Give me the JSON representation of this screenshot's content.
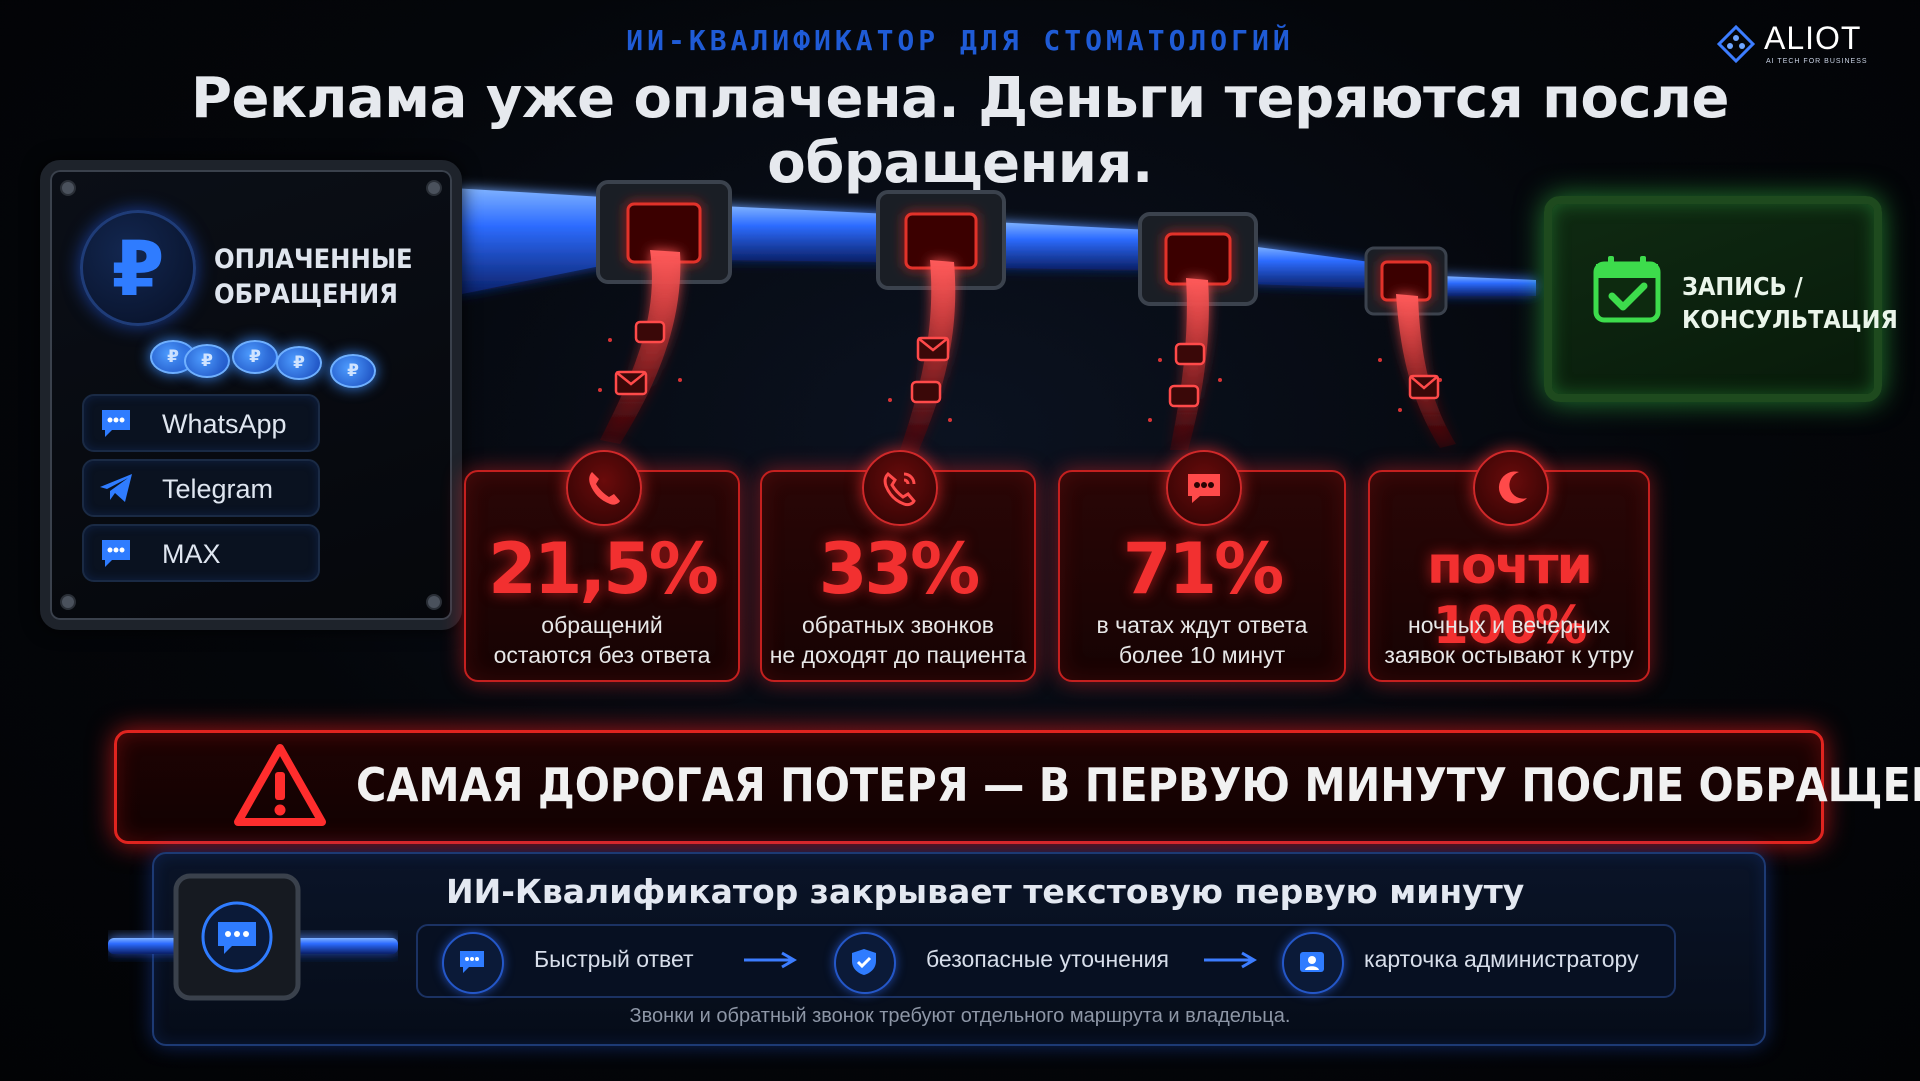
{
  "header": {
    "kicker": "ИИ-КВАЛИФИКАТОР ДЛЯ СТОМАТОЛОГИЙ",
    "headline": "Реклама уже оплачена. Деньги теряются после обращения."
  },
  "logo": {
    "name": "ALIOT",
    "tagline": "AI TECH FOR BUSINESS"
  },
  "source": {
    "title_line1": "ОПЛАЧЕННЫЕ",
    "title_line2": "ОБРАЩЕНИЯ",
    "currency_symbol": "₽",
    "channels": [
      {
        "label": "WhatsApp",
        "icon": "chat-icon"
      },
      {
        "label": "Telegram",
        "icon": "paper-plane-icon"
      },
      {
        "label": "MAX",
        "icon": "chat-icon"
      }
    ]
  },
  "target": {
    "line1": "ЗАПИСЬ /",
    "line2": "КОНСУЛЬТАЦИЯ",
    "icon": "calendar-check-icon"
  },
  "stats": [
    {
      "value": "21,5%",
      "line1": "обращений",
      "line2": "остаются без ответа",
      "icon": "phone-icon"
    },
    {
      "value": "33%",
      "line1": "обратных звонков",
      "line2": "не доходят до пациента",
      "icon": "phone-ringing-icon"
    },
    {
      "value": "71%",
      "line1": "в чатах ждут ответа",
      "line2": "более 10 минут",
      "icon": "chat-icon"
    },
    {
      "value": "почти 100%",
      "line1": "ночных и вечерних",
      "line2": "заявок остывают к утру",
      "icon": "moon-icon"
    }
  ],
  "warning": {
    "text": "САМАЯ ДОРОГАЯ ПОТЕРЯ — В ПЕРВУЮ МИНУТУ ПОСЛЕ ОБРАЩЕНИЯ",
    "icon": "warning-icon"
  },
  "module": {
    "title": "ИИ-Квалификатор закрывает текстовую первую минуту",
    "steps": [
      {
        "label": "Быстрый ответ",
        "icon": "chat-icon"
      },
      {
        "label": "безопасные уточнения",
        "icon": "shield-check-icon"
      },
      {
        "label": "карточка администратору",
        "icon": "id-card-icon"
      }
    ],
    "footnote": "Звонки и обратный звонок требуют отдельного маршрута и владельца."
  },
  "colors": {
    "accent_blue": "#2f7cff",
    "loss_red": "#f23030",
    "success_green": "#39c94a"
  }
}
